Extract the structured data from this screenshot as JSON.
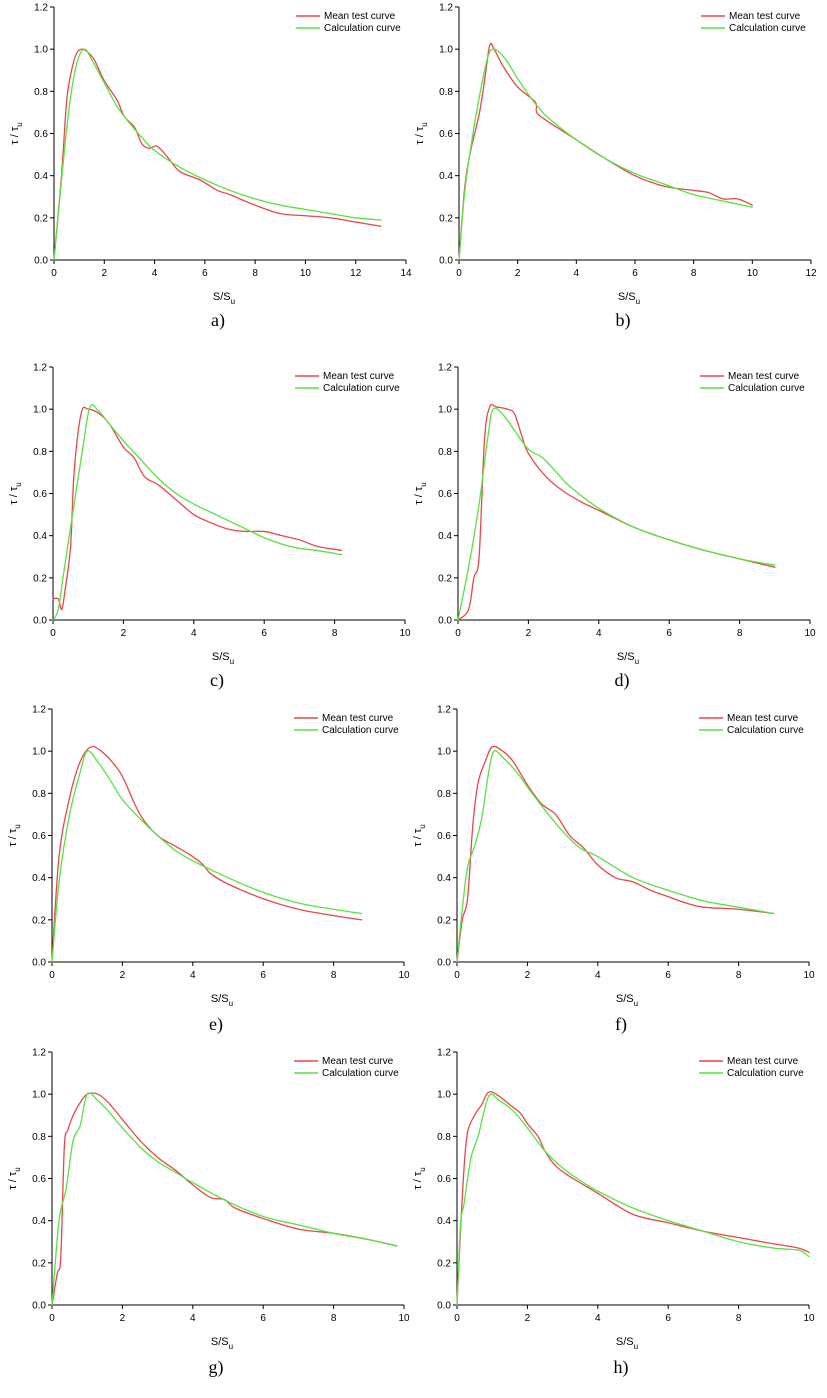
{
  "chart_data": [
    {
      "panel": "a)",
      "type": "line",
      "xlabel": "S/S",
      "xlabel_sub": "u",
      "ylabel": "τ / τ",
      "ylabel_sub": "u",
      "xlim": [
        0,
        14
      ],
      "xticks": [
        0,
        2,
        4,
        6,
        8,
        10,
        12,
        14
      ],
      "ylim": [
        0,
        1.2
      ],
      "yticks": [
        "0.0",
        "0.2",
        "0.4",
        "0.6",
        "0.8",
        "1.0",
        "1.2"
      ],
      "legend_position": "top-right",
      "series": [
        {
          "name": "Mean test curve",
          "color": "#e8474c",
          "x": [
            0,
            0.3,
            0.5,
            0.7,
            0.9,
            1.1,
            1.3,
            1.6,
            2.0,
            2.5,
            2.8,
            3.2,
            3.5,
            3.8,
            4.1,
            4.5,
            5.0,
            5.8,
            6.5,
            7.0,
            8.0,
            9.0,
            10.0,
            11.0,
            12.0,
            13.0
          ],
          "y": [
            0,
            0.4,
            0.75,
            0.9,
            0.98,
            1.0,
            0.99,
            0.95,
            0.85,
            0.76,
            0.68,
            0.63,
            0.55,
            0.53,
            0.54,
            0.49,
            0.42,
            0.38,
            0.33,
            0.31,
            0.26,
            0.22,
            0.21,
            0.2,
            0.18,
            0.16
          ]
        },
        {
          "name": "Calculation curve",
          "color": "#57e33f",
          "x": [
            0,
            0.3,
            0.6,
            0.9,
            1.2,
            1.5,
            2.0,
            2.5,
            3.0,
            3.5,
            4.0,
            5.0,
            6.0,
            7.0,
            8.0,
            9.0,
            10.0,
            11.0,
            12.0,
            13.0
          ],
          "y": [
            0,
            0.38,
            0.72,
            0.93,
            1.0,
            0.95,
            0.84,
            0.73,
            0.65,
            0.58,
            0.52,
            0.44,
            0.38,
            0.33,
            0.29,
            0.26,
            0.24,
            0.22,
            0.2,
            0.19
          ]
        }
      ],
      "caption": "a)"
    },
    {
      "panel": "b)",
      "type": "line",
      "xlabel": "S/S",
      "xlabel_sub": "u",
      "ylabel": "τ / τ",
      "ylabel_sub": "u",
      "xlim": [
        0,
        12
      ],
      "xticks": [
        0,
        2,
        4,
        6,
        8,
        10,
        12
      ],
      "ylim": [
        0,
        1.2
      ],
      "yticks": [
        "0.0",
        "0.2",
        "0.4",
        "0.6",
        "0.8",
        "1.0",
        "1.2"
      ],
      "legend_position": "top-right",
      "series": [
        {
          "name": "Mean test curve",
          "color": "#e8474c",
          "x": [
            0,
            0.2,
            0.4,
            0.7,
            0.9,
            1.05,
            1.2,
            1.5,
            2.0,
            2.6,
            2.65,
            3.0,
            4.0,
            5.0,
            6.0,
            7.0,
            8.0,
            8.5,
            9.0,
            9.5,
            10.0
          ],
          "y": [
            0,
            0.35,
            0.52,
            0.7,
            0.88,
            1.02,
            1.0,
            0.92,
            0.82,
            0.75,
            0.7,
            0.66,
            0.57,
            0.48,
            0.4,
            0.35,
            0.33,
            0.32,
            0.29,
            0.29,
            0.26
          ]
        },
        {
          "name": "Calculation curve",
          "color": "#57e33f",
          "x": [
            0,
            0.2,
            0.5,
            0.8,
            1.0,
            1.2,
            1.6,
            2.0,
            2.5,
            3.0,
            4.0,
            5.0,
            6.0,
            7.0,
            8.0,
            9.0,
            10.0
          ],
          "y": [
            0,
            0.33,
            0.62,
            0.85,
            0.97,
            1.0,
            0.95,
            0.86,
            0.76,
            0.68,
            0.57,
            0.48,
            0.41,
            0.36,
            0.31,
            0.28,
            0.25
          ]
        }
      ],
      "caption": "b)"
    },
    {
      "panel": "c)",
      "type": "line",
      "xlabel": "S/S",
      "xlabel_sub": "u",
      "ylabel": "τ / τ",
      "ylabel_sub": "u",
      "xlim": [
        0,
        10
      ],
      "xticks": [
        0,
        2,
        4,
        6,
        8,
        10
      ],
      "ylim": [
        0,
        1.2
      ],
      "yticks": [
        "0.0",
        "0.2",
        "0.4",
        "0.6",
        "0.8",
        "1.0",
        "1.2"
      ],
      "legend_position": "top-right",
      "series": [
        {
          "name": "Mean test curve",
          "color": "#e8474c",
          "x": [
            0,
            0.15,
            0.25,
            0.35,
            0.5,
            0.6,
            0.8,
            1.0,
            1.3,
            1.6,
            2.0,
            2.3,
            2.6,
            3.0,
            3.5,
            4.0,
            4.5,
            5.0,
            5.5,
            6.0,
            6.5,
            7.0,
            7.5,
            8.2
          ],
          "y": [
            0.1,
            0.1,
            0.05,
            0.15,
            0.35,
            0.7,
            0.98,
            1.0,
            0.98,
            0.93,
            0.82,
            0.77,
            0.68,
            0.64,
            0.57,
            0.5,
            0.46,
            0.43,
            0.42,
            0.42,
            0.4,
            0.38,
            0.35,
            0.33
          ]
        },
        {
          "name": "Calculation curve",
          "color": "#57e33f",
          "x": [
            0,
            0.15,
            0.3,
            0.6,
            0.85,
            1.05,
            1.3,
            1.6,
            2.0,
            2.5,
            3.0,
            3.5,
            4.0,
            4.5,
            5.0,
            5.5,
            6.0,
            6.5,
            7.0,
            7.5,
            8.2
          ],
          "y": [
            0,
            0.05,
            0.22,
            0.55,
            0.82,
            1.01,
            0.99,
            0.93,
            0.85,
            0.76,
            0.67,
            0.6,
            0.55,
            0.51,
            0.47,
            0.43,
            0.39,
            0.36,
            0.34,
            0.33,
            0.31
          ]
        }
      ],
      "caption": "c)"
    },
    {
      "panel": "d)",
      "type": "line",
      "xlabel": "S/S",
      "xlabel_sub": "u",
      "ylabel": "τ / τ",
      "ylabel_sub": "u",
      "xlim": [
        0,
        10
      ],
      "xticks": [
        0,
        2,
        4,
        6,
        8,
        10
      ],
      "ylim": [
        0,
        1.2
      ],
      "yticks": [
        "0.0",
        "0.2",
        "0.4",
        "0.6",
        "0.8",
        "1.0",
        "1.2"
      ],
      "legend_position": "top-right",
      "series": [
        {
          "name": "Mean test curve",
          "color": "#e8474c",
          "x": [
            0,
            0.3,
            0.45,
            0.6,
            0.75,
            0.9,
            1.1,
            1.4,
            1.6,
            1.8,
            2.0,
            2.5,
            3.0,
            3.5,
            4.0,
            5.0,
            6.0,
            7.0,
            8.0,
            9.0
          ],
          "y": [
            0,
            0.05,
            0.2,
            0.3,
            0.85,
            1.01,
            1.01,
            1.0,
            0.98,
            0.88,
            0.79,
            0.68,
            0.61,
            0.56,
            0.52,
            0.44,
            0.38,
            0.33,
            0.29,
            0.25
          ]
        },
        {
          "name": "Calculation curve",
          "color": "#57e33f",
          "x": [
            0,
            0.3,
            0.6,
            0.85,
            1.0,
            1.3,
            1.6,
            2.0,
            2.4,
            2.8,
            3.2,
            4.0,
            5.0,
            6.0,
            7.0,
            8.0,
            9.0
          ],
          "y": [
            0,
            0.25,
            0.55,
            0.87,
            1.0,
            0.97,
            0.9,
            0.81,
            0.77,
            0.7,
            0.63,
            0.53,
            0.44,
            0.38,
            0.33,
            0.29,
            0.26
          ]
        }
      ],
      "caption": "d)"
    },
    {
      "panel": "e)",
      "type": "line",
      "xlabel": "S/S",
      "xlabel_sub": "u",
      "ylabel": "τ / τ",
      "ylabel_sub": "u",
      "xlim": [
        0,
        10
      ],
      "xticks": [
        0,
        2,
        4,
        6,
        8,
        10
      ],
      "ylim": [
        0,
        1.2
      ],
      "yticks": [
        "0.0",
        "0.2",
        "0.4",
        "0.6",
        "0.8",
        "1.0",
        "1.2"
      ],
      "legend_position": "top-right",
      "series": [
        {
          "name": "Mean test curve",
          "color": "#e8474c",
          "x": [
            0,
            0.2,
            0.5,
            0.8,
            1.1,
            1.4,
            1.7,
            2.0,
            2.5,
            3.0,
            3.5,
            4.0,
            4.3,
            4.5,
            5.0,
            6.0,
            7.0,
            8.0,
            8.8
          ],
          "y": [
            0,
            0.5,
            0.78,
            0.95,
            1.02,
            1.0,
            0.95,
            0.88,
            0.7,
            0.6,
            0.55,
            0.5,
            0.46,
            0.42,
            0.37,
            0.3,
            0.25,
            0.22,
            0.2
          ]
        },
        {
          "name": "Calculation curve",
          "color": "#57e33f",
          "x": [
            0,
            0.2,
            0.5,
            0.8,
            1.0,
            1.3,
            1.7,
            2.0,
            2.5,
            3.0,
            3.5,
            4.0,
            5.0,
            6.0,
            7.0,
            8.0,
            8.8
          ],
          "y": [
            0,
            0.38,
            0.7,
            0.9,
            1.0,
            0.95,
            0.85,
            0.77,
            0.68,
            0.6,
            0.53,
            0.48,
            0.4,
            0.33,
            0.28,
            0.25,
            0.23
          ]
        }
      ],
      "caption": "e)"
    },
    {
      "panel": "f)",
      "type": "line",
      "xlabel": "S/S",
      "xlabel_sub": "u",
      "ylabel": "τ / τ",
      "ylabel_sub": "u",
      "xlim": [
        0,
        10
      ],
      "xticks": [
        0,
        2,
        4,
        6,
        8,
        10
      ],
      "ylim": [
        0,
        1.2
      ],
      "yticks": [
        "0.0",
        "0.2",
        "0.4",
        "0.6",
        "0.8",
        "1.0",
        "1.2"
      ],
      "legend_position": "top-right",
      "series": [
        {
          "name": "Mean test curve",
          "color": "#e8474c",
          "x": [
            0,
            0.15,
            0.3,
            0.45,
            0.6,
            0.8,
            1.0,
            1.3,
            1.6,
            2.0,
            2.4,
            2.8,
            3.2,
            3.6,
            4.0,
            4.5,
            5.0,
            5.5,
            6.0,
            6.5,
            7.0,
            8.0,
            9.0
          ],
          "y": [
            0,
            0.2,
            0.3,
            0.65,
            0.85,
            0.95,
            1.02,
            1.0,
            0.95,
            0.84,
            0.75,
            0.7,
            0.6,
            0.54,
            0.46,
            0.4,
            0.38,
            0.34,
            0.31,
            0.28,
            0.26,
            0.25,
            0.23
          ]
        },
        {
          "name": "Calculation curve",
          "color": "#57e33f",
          "x": [
            0,
            0.15,
            0.3,
            0.5,
            0.7,
            0.9,
            1.05,
            1.3,
            1.7,
            2.0,
            2.5,
            3.0,
            3.5,
            4.0,
            5.0,
            6.0,
            7.0,
            8.0,
            9.0
          ],
          "y": [
            0,
            0.25,
            0.45,
            0.55,
            0.68,
            0.9,
            1.0,
            0.97,
            0.9,
            0.83,
            0.72,
            0.62,
            0.54,
            0.5,
            0.4,
            0.34,
            0.29,
            0.26,
            0.23
          ]
        }
      ],
      "caption": "f)"
    },
    {
      "panel": "g)",
      "type": "line",
      "xlabel": "S/S",
      "xlabel_sub": "u",
      "ylabel": "τ / τ",
      "ylabel_sub": "u",
      "xlim": [
        0,
        10
      ],
      "xticks": [
        0,
        2,
        4,
        6,
        8,
        10
      ],
      "ylim": [
        0,
        1.2
      ],
      "yticks": [
        "0.0",
        "0.2",
        "0.4",
        "0.6",
        "0.8",
        "1.0",
        "1.2"
      ],
      "legend_position": "top-right",
      "series": [
        {
          "name": "Mean test curve",
          "color": "#e8474c",
          "x": [
            0,
            0.15,
            0.25,
            0.35,
            0.45,
            0.6,
            0.8,
            1.0,
            1.3,
            1.6,
            2.0,
            2.5,
            3.0,
            3.5,
            4.0,
            4.5,
            4.9,
            5.2,
            6.0,
            7.0,
            8.0,
            9.0,
            9.8
          ],
          "y": [
            0,
            0.15,
            0.23,
            0.75,
            0.83,
            0.9,
            0.96,
            1.0,
            1.0,
            0.96,
            0.88,
            0.78,
            0.7,
            0.64,
            0.57,
            0.51,
            0.5,
            0.46,
            0.41,
            0.36,
            0.34,
            0.31,
            0.28
          ]
        },
        {
          "name": "Calculation curve",
          "color": "#57e33f",
          "x": [
            0,
            0.2,
            0.4,
            0.6,
            0.8,
            1.0,
            1.3,
            1.6,
            2.0,
            2.5,
            3.0,
            3.5,
            4.0,
            5.0,
            6.0,
            7.0,
            8.0,
            9.0,
            9.8
          ],
          "y": [
            0,
            0.4,
            0.55,
            0.78,
            0.85,
            1.0,
            0.97,
            0.92,
            0.84,
            0.75,
            0.68,
            0.63,
            0.58,
            0.49,
            0.42,
            0.38,
            0.34,
            0.31,
            0.28
          ]
        }
      ],
      "caption": "g)"
    },
    {
      "panel": "h)",
      "type": "line",
      "xlabel": "S/S",
      "xlabel_sub": "u",
      "ylabel": "τ / τ",
      "ylabel_sub": "u",
      "xlim": [
        0,
        10
      ],
      "xticks": [
        0,
        2,
        4,
        6,
        8,
        10
      ],
      "ylim": [
        0,
        1.2
      ],
      "yticks": [
        "0.0",
        "0.2",
        "0.4",
        "0.6",
        "0.8",
        "1.0",
        "1.2"
      ],
      "legend_position": "top-right",
      "series": [
        {
          "name": "Mean test curve",
          "color": "#e8474c",
          "x": [
            0,
            0.1,
            0.2,
            0.3,
            0.5,
            0.7,
            0.9,
            1.2,
            1.5,
            1.8,
            2.0,
            2.3,
            2.5,
            2.8,
            3.2,
            4.0,
            5.0,
            6.0,
            7.0,
            8.0,
            9.0,
            9.7,
            10.0
          ],
          "y": [
            0,
            0.35,
            0.65,
            0.82,
            0.9,
            0.95,
            1.01,
            0.99,
            0.95,
            0.91,
            0.86,
            0.8,
            0.73,
            0.66,
            0.61,
            0.53,
            0.43,
            0.39,
            0.35,
            0.32,
            0.29,
            0.27,
            0.25
          ]
        },
        {
          "name": "Calculation curve",
          "color": "#57e33f",
          "x": [
            0,
            0.1,
            0.2,
            0.4,
            0.6,
            0.9,
            1.2,
            1.6,
            2.0,
            2.5,
            3.0,
            3.5,
            4.0,
            5.0,
            6.0,
            7.0,
            8.0,
            9.0,
            9.7,
            10.0
          ],
          "y": [
            0,
            0.38,
            0.48,
            0.7,
            0.8,
            0.99,
            0.97,
            0.92,
            0.84,
            0.73,
            0.65,
            0.59,
            0.54,
            0.46,
            0.4,
            0.35,
            0.3,
            0.27,
            0.26,
            0.23
          ]
        }
      ],
      "caption": "h)"
    }
  ]
}
